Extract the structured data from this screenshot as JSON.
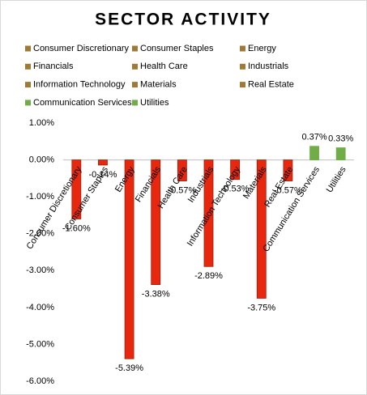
{
  "chart_data": {
    "type": "bar",
    "title": "SECTOR ACTIVITY",
    "categories": [
      "Consumer Discretionary",
      "Consumer Staples",
      "Energy",
      "Financials",
      "Health Care",
      "Industrials",
      "Information Technology",
      "Materials",
      "Real Estate",
      "Communication Services",
      "Utilities"
    ],
    "values": [
      -1.6,
      -0.14,
      -5.39,
      -3.38,
      -0.57,
      -2.89,
      -0.53,
      -3.75,
      -0.57,
      0.37,
      0.33
    ],
    "value_labels": [
      "-1.60%",
      "-0.14%",
      "-5.39%",
      "-3.38%",
      "-0.57%",
      "-2.89%",
      "-0.53%",
      "-3.75%",
      "-0.57%",
      "0.37%",
      "0.33%"
    ],
    "colors": [
      "#e8280e",
      "#e8280e",
      "#e8280e",
      "#e8280e",
      "#e8280e",
      "#e8280e",
      "#e8280e",
      "#e8280e",
      "#e8280e",
      "#70ad47",
      "#70ad47"
    ],
    "legend_colors": [
      "#9e7a36",
      "#9e7a36",
      "#9e7a36",
      "#9e7a36",
      "#9e7a36",
      "#9e7a36",
      "#9e7a36",
      "#9e7a36",
      "#9e7a36",
      "#70ad47",
      "#70ad47"
    ],
    "ylim": [
      -6,
      1
    ],
    "yticks": [
      {
        "value": 1,
        "label": "1.00%"
      },
      {
        "value": 0,
        "label": "0.00%"
      },
      {
        "value": -1,
        "label": "-1.00%"
      },
      {
        "value": -2,
        "label": "-2.00%"
      },
      {
        "value": -3,
        "label": "-3.00%"
      },
      {
        "value": -4,
        "label": "-4.00%"
      },
      {
        "value": -5,
        "label": "-5.00%"
      },
      {
        "value": -6,
        "label": "-6.00%"
      }
    ],
    "grid": false
  }
}
